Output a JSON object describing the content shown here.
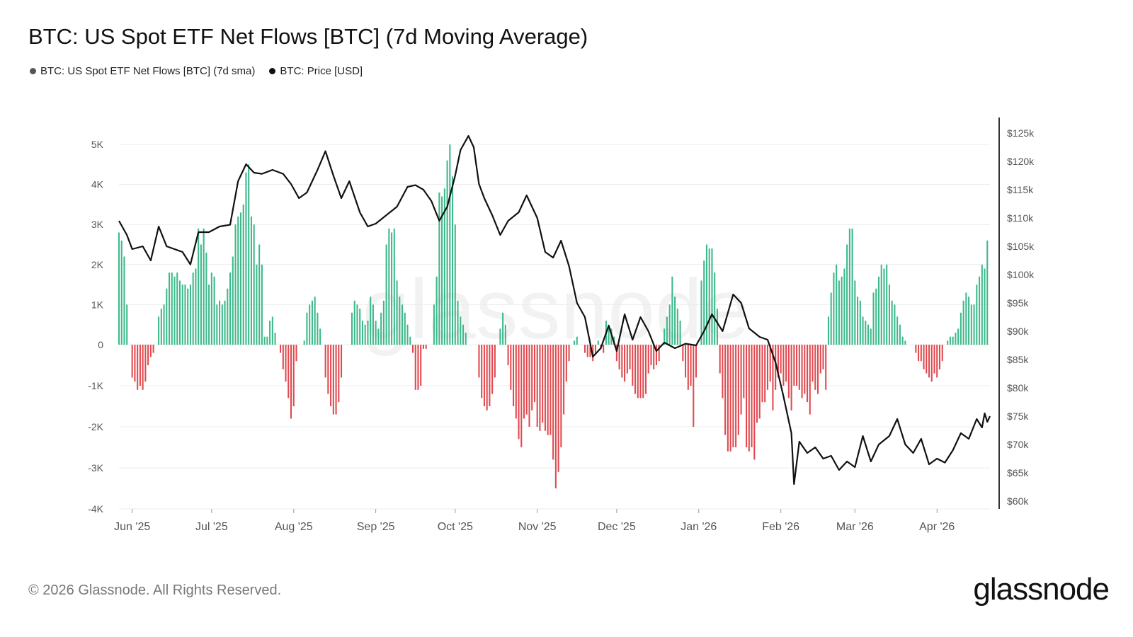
{
  "title": "BTC: US Spot ETF Net Flows [BTC] (7d Moving Average)",
  "legend": [
    {
      "label": "BTC: US Spot ETF Net Flows [BTC] (7d sma)",
      "color": "#555555"
    },
    {
      "label": "BTC: Price [USD]",
      "color": "#111111"
    }
  ],
  "footer": "© 2026 Glassnode. All Rights Reserved.",
  "brand": "glassnode",
  "watermark": "glassnode",
  "colors": {
    "positive": "#3cb98a",
    "negative": "#e0494f",
    "price": "#111111",
    "grid": "#ececec",
    "right_axis": "#333333"
  },
  "chart_data": {
    "type": "bar",
    "x_type": "date",
    "x_range": [
      "2025-05-27",
      "2026-04-21"
    ],
    "x_ticks": [
      {
        "date": "2025-06-01",
        "label": "Jun '25"
      },
      {
        "date": "2025-07-01",
        "label": "Jul '25"
      },
      {
        "date": "2025-08-01",
        "label": "Aug '25"
      },
      {
        "date": "2025-09-01",
        "label": "Sep '25"
      },
      {
        "date": "2025-10-01",
        "label": "Oct '25"
      },
      {
        "date": "2025-11-01",
        "label": "Nov '25"
      },
      {
        "date": "2025-12-01",
        "label": "Dec '25"
      },
      {
        "date": "2026-01-01",
        "label": "Jan '26"
      },
      {
        "date": "2026-02-01",
        "label": "Feb '26"
      },
      {
        "date": "2026-03-01",
        "label": "Mar '26"
      },
      {
        "date": "2026-04-01",
        "label": "Apr '26"
      }
    ],
    "y_left": {
      "ylim": [
        -4000,
        5000
      ],
      "ticks": [
        {
          "v": 5000,
          "label": "5K"
        },
        {
          "v": 4000,
          "label": "4K"
        },
        {
          "v": 3000,
          "label": "3K"
        },
        {
          "v": 2000,
          "label": "2K"
        },
        {
          "v": 1000,
          "label": "1K"
        },
        {
          "v": 0,
          "label": "0"
        },
        {
          "v": -1000,
          "label": "-1K"
        },
        {
          "v": -2000,
          "label": "-2K"
        },
        {
          "v": -3000,
          "label": "-3K"
        },
        {
          "v": -4000,
          "label": "-4K"
        }
      ]
    },
    "y_right": {
      "ylim": [
        60000,
        125000
      ],
      "ticks": [
        {
          "v": 125000,
          "label": "$125k"
        },
        {
          "v": 120000,
          "label": "$120k"
        },
        {
          "v": 115000,
          "label": "$115k"
        },
        {
          "v": 110000,
          "label": "$110k"
        },
        {
          "v": 105000,
          "label": "$105k"
        },
        {
          "v": 100000,
          "label": "$100k"
        },
        {
          "v": 95000,
          "label": "$95k"
        },
        {
          "v": 90000,
          "label": "$90k"
        },
        {
          "v": 85000,
          "label": "$85k"
        },
        {
          "v": 80000,
          "label": "$80k"
        },
        {
          "v": 75000,
          "label": "$75k"
        },
        {
          "v": 70000,
          "label": "$70k"
        },
        {
          "v": 65000,
          "label": "$65k"
        },
        {
          "v": 60000,
          "label": "$60k"
        }
      ]
    },
    "series": [
      {
        "name": "BTC: US Spot ETF Net Flows [BTC] (7d sma)",
        "type": "bar",
        "start_date": "2025-05-27",
        "step_days": 1,
        "values": [
          2800,
          2600,
          2200,
          1000,
          0,
          -800,
          -900,
          -1100,
          -1000,
          -1100,
          -900,
          -500,
          -300,
          -200,
          0,
          700,
          900,
          1000,
          1400,
          1800,
          1800,
          1700,
          1800,
          1600,
          1500,
          1500,
          1400,
          1500,
          1800,
          1900,
          2900,
          2500,
          2900,
          2300,
          1500,
          1800,
          1700,
          1000,
          1100,
          1000,
          1100,
          1400,
          1800,
          2200,
          3000,
          3200,
          3300,
          3500,
          4300,
          4500,
          3200,
          3000,
          2000,
          2500,
          2000,
          200,
          200,
          600,
          700,
          300,
          0,
          -200,
          -600,
          -900,
          -1300,
          -1800,
          -1500,
          -400,
          0,
          0,
          100,
          800,
          1000,
          1100,
          1200,
          800,
          400,
          0,
          -800,
          -1200,
          -1500,
          -1700,
          -1700,
          -1400,
          -800,
          0,
          0,
          0,
          800,
          1100,
          1000,
          900,
          600,
          500,
          600,
          1200,
          1000,
          600,
          400,
          800,
          1100,
          2500,
          2900,
          2800,
          2900,
          1600,
          1200,
          1000,
          800,
          500,
          200,
          -200,
          -1100,
          -1100,
          -1000,
          -100,
          -100,
          0,
          0,
          1000,
          1700,
          3800,
          3700,
          3900,
          4600,
          5000,
          4200,
          3000,
          1100,
          700,
          500,
          300,
          0,
          0,
          0,
          0,
          -800,
          -1300,
          -1500,
          -1600,
          -1500,
          -1200,
          -800,
          0,
          400,
          800,
          500,
          -500,
          -1100,
          -1500,
          -1800,
          -2300,
          -2500,
          -1800,
          -1700,
          -2000,
          -1600,
          -1400,
          -2000,
          -2100,
          -1900,
          -2100,
          -2200,
          -2200,
          -2800,
          -3500,
          -3100,
          -2500,
          -1700,
          -900,
          -400,
          0,
          100,
          200,
          0,
          0,
          -200,
          -300,
          -300,
          -400,
          -200,
          100,
          -100,
          -200,
          600,
          500,
          400,
          200,
          -400,
          -600,
          -800,
          -900,
          -700,
          -600,
          -1000,
          -1200,
          -1300,
          -1300,
          -1300,
          -1200,
          -700,
          -500,
          -600,
          -500,
          -400,
          0,
          400,
          700,
          1000,
          1700,
          1200,
          900,
          600,
          -400,
          -800,
          -1100,
          -1000,
          -2000,
          -800,
          0,
          1600,
          2100,
          2500,
          2400,
          2400,
          1800,
          900,
          -700,
          -1300,
          -2200,
          -2600,
          -2600,
          -2500,
          -2500,
          -2200,
          -1700,
          -1300,
          -2500,
          -2600,
          -2500,
          -2800,
          -1900,
          -1800,
          -1400,
          -1400,
          -1100,
          -900,
          -1600,
          -1100,
          -800,
          -700,
          -1000,
          -900,
          -1300,
          -1600,
          -1000,
          -1000,
          -1100,
          -1300,
          -1200,
          -1400,
          -1700,
          -900,
          -1100,
          -1200,
          -700,
          -600,
          -1100,
          700,
          1300,
          1800,
          2000,
          1600,
          1700,
          1900,
          2500,
          2900,
          2900,
          1600,
          1200,
          1100,
          700,
          600,
          500,
          400,
          1300,
          1400,
          1700,
          2000,
          1900,
          2000,
          1500,
          1100,
          1000,
          700,
          500,
          200,
          100,
          0,
          0,
          0,
          -200,
          -400,
          -400,
          -600,
          -700,
          -800,
          -900,
          -700,
          -800,
          -600,
          -400,
          0,
          100,
          200,
          200,
          300,
          400,
          800,
          1100,
          1300,
          1200,
          1000,
          1000,
          1500,
          1700,
          2000,
          1900,
          2600
        ]
      },
      {
        "name": "BTC: Price [USD]",
        "type": "line",
        "axis": "right",
        "points": [
          [
            "2025-05-27",
            109500
          ],
          [
            "2025-05-30",
            107000
          ],
          [
            "2025-06-01",
            104500
          ],
          [
            "2025-06-05",
            105000
          ],
          [
            "2025-06-08",
            102500
          ],
          [
            "2025-06-11",
            108500
          ],
          [
            "2025-06-14",
            105000
          ],
          [
            "2025-06-17",
            104500
          ],
          [
            "2025-06-20",
            104000
          ],
          [
            "2025-06-23",
            101800
          ],
          [
            "2025-06-26",
            107500
          ],
          [
            "2025-06-30",
            107500
          ],
          [
            "2025-07-04",
            108500
          ],
          [
            "2025-07-08",
            108800
          ],
          [
            "2025-07-11",
            116500
          ],
          [
            "2025-07-14",
            119500
          ],
          [
            "2025-07-17",
            118000
          ],
          [
            "2025-07-20",
            117800
          ],
          [
            "2025-07-24",
            118500
          ],
          [
            "2025-07-28",
            117800
          ],
          [
            "2025-07-31",
            116000
          ],
          [
            "2025-08-03",
            113500
          ],
          [
            "2025-08-06",
            114500
          ],
          [
            "2025-08-10",
            118500
          ],
          [
            "2025-08-13",
            121800
          ],
          [
            "2025-08-16",
            117500
          ],
          [
            "2025-08-19",
            113500
          ],
          [
            "2025-08-22",
            116500
          ],
          [
            "2025-08-26",
            111000
          ],
          [
            "2025-08-29",
            108500
          ],
          [
            "2025-09-01",
            109000
          ],
          [
            "2025-09-05",
            110500
          ],
          [
            "2025-09-09",
            112000
          ],
          [
            "2025-09-13",
            115500
          ],
          [
            "2025-09-16",
            115800
          ],
          [
            "2025-09-19",
            115000
          ],
          [
            "2025-09-22",
            113000
          ],
          [
            "2025-09-25",
            109500
          ],
          [
            "2025-09-28",
            112000
          ],
          [
            "2025-10-01",
            117500
          ],
          [
            "2025-10-03",
            122000
          ],
          [
            "2025-10-06",
            124500
          ],
          [
            "2025-10-08",
            122500
          ],
          [
            "2025-10-10",
            116000
          ],
          [
            "2025-10-12",
            113500
          ],
          [
            "2025-10-15",
            110500
          ],
          [
            "2025-10-18",
            107000
          ],
          [
            "2025-10-21",
            109500
          ],
          [
            "2025-10-25",
            111000
          ],
          [
            "2025-10-28",
            114000
          ],
          [
            "2025-11-01",
            110000
          ],
          [
            "2025-11-04",
            104000
          ],
          [
            "2025-11-07",
            103000
          ],
          [
            "2025-11-10",
            106000
          ],
          [
            "2025-11-13",
            101500
          ],
          [
            "2025-11-16",
            95000
          ],
          [
            "2025-11-19",
            92500
          ],
          [
            "2025-11-22",
            85500
          ],
          [
            "2025-11-25",
            87000
          ],
          [
            "2025-11-28",
            91000
          ],
          [
            "2025-12-01",
            86500
          ],
          [
            "2025-12-04",
            93000
          ],
          [
            "2025-12-07",
            88500
          ],
          [
            "2025-12-10",
            92500
          ],
          [
            "2025-12-13",
            90000
          ],
          [
            "2025-12-16",
            86500
          ],
          [
            "2025-12-19",
            88000
          ],
          [
            "2025-12-23",
            87000
          ],
          [
            "2025-12-27",
            87800
          ],
          [
            "2025-12-31",
            87500
          ],
          [
            "2026-01-03",
            90000
          ],
          [
            "2026-01-06",
            93000
          ],
          [
            "2026-01-10",
            90000
          ],
          [
            "2026-01-14",
            96500
          ],
          [
            "2026-01-17",
            95000
          ],
          [
            "2026-01-20",
            90500
          ],
          [
            "2026-01-24",
            89000
          ],
          [
            "2026-01-27",
            88500
          ],
          [
            "2026-01-30",
            84500
          ],
          [
            "2026-02-02",
            78500
          ],
          [
            "2026-02-05",
            72000
          ],
          [
            "2026-02-06",
            63000
          ],
          [
            "2026-02-08",
            70500
          ],
          [
            "2026-02-11",
            68500
          ],
          [
            "2026-02-14",
            69500
          ],
          [
            "2026-02-17",
            67500
          ],
          [
            "2026-02-20",
            68000
          ],
          [
            "2026-02-23",
            65500
          ],
          [
            "2026-02-26",
            67000
          ],
          [
            "2026-03-01",
            66000
          ],
          [
            "2026-03-04",
            71500
          ],
          [
            "2026-03-07",
            67000
          ],
          [
            "2026-03-10",
            70000
          ],
          [
            "2026-03-14",
            71500
          ],
          [
            "2026-03-17",
            74500
          ],
          [
            "2026-03-20",
            70000
          ],
          [
            "2026-03-23",
            68500
          ],
          [
            "2026-03-26",
            71000
          ],
          [
            "2026-03-29",
            66500
          ],
          [
            "2026-04-01",
            67500
          ],
          [
            "2026-04-04",
            66800
          ],
          [
            "2026-04-07",
            69000
          ],
          [
            "2026-04-10",
            72000
          ],
          [
            "2026-04-13",
            71000
          ],
          [
            "2026-04-16",
            74500
          ],
          [
            "2026-04-18",
            73000
          ],
          [
            "2026-04-19",
            75500
          ],
          [
            "2026-04-20",
            74000
          ],
          [
            "2026-04-21",
            75000
          ]
        ]
      }
    ],
    "grid": true
  }
}
